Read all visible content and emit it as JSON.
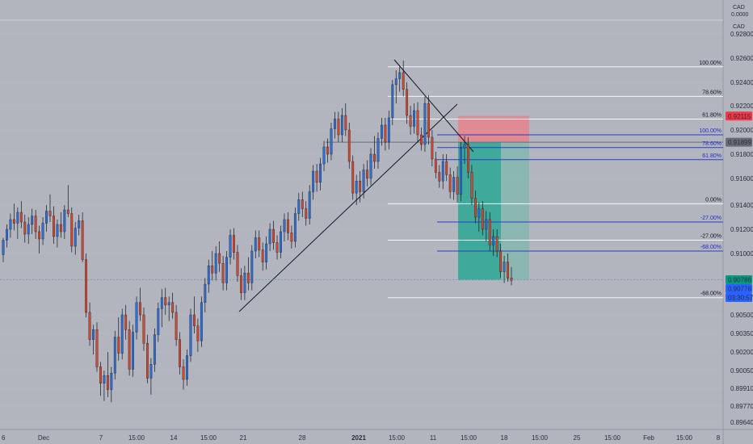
{
  "chart_data": {
    "type": "candlestick",
    "header": {
      "currency": "CAD",
      "currency2": "CAD",
      "price_partial": "0.0000"
    },
    "price_axis": {
      "range": [
        0.8955,
        0.9288
      ],
      "ticks": [
        {
          "value": 0.928,
          "label": "0.92800"
        },
        {
          "value": 0.926,
          "label": "0.92600"
        },
        {
          "value": 0.924,
          "label": "0.92400"
        },
        {
          "value": 0.922,
          "label": "0.92200"
        },
        {
          "value": 0.92,
          "label": "0.92000"
        },
        {
          "value": 0.918,
          "label": "0.91800"
        },
        {
          "value": 0.916,
          "label": "0.91600"
        },
        {
          "value": 0.914,
          "label": "0.91400"
        },
        {
          "value": 0.912,
          "label": "0.91200"
        },
        {
          "value": 0.91,
          "label": "0.91000"
        },
        {
          "value": 0.905,
          "label": "0.90500"
        },
        {
          "value": 0.9035,
          "label": "0.90350"
        },
        {
          "value": 0.902,
          "label": "0.90200"
        },
        {
          "value": 0.9005,
          "label": "0.90050"
        },
        {
          "value": 0.8991,
          "label": "0.89910"
        },
        {
          "value": 0.8977,
          "label": "0.89770"
        },
        {
          "value": 0.8964,
          "label": "0.89640"
        }
      ]
    },
    "time_axis": {
      "labels": [
        "6",
        "Dec",
        "7",
        "15:00",
        "14",
        "15:00",
        "21",
        "28",
        "2021",
        "15:00",
        "11",
        "15:00",
        "18",
        "15:00",
        "25",
        "15:00",
        "Feb",
        "15:00",
        "8"
      ]
    },
    "price_badges": [
      {
        "label": "0.92115",
        "value": 0.92115,
        "color": "#f23645"
      },
      {
        "label": "0.91899",
        "value": 0.91899,
        "color": "#6a6d78"
      },
      {
        "label": "0.90786",
        "value": 0.90786,
        "color": "#089981"
      },
      {
        "label": "0.90776",
        "value": 0.90776,
        "color": "#2962ff"
      },
      {
        "label": "03:30:57",
        "value": 0.907,
        "color": "#2962ff"
      }
    ],
    "fib_black": [
      {
        "label": "100.00%",
        "value": 0.92528
      },
      {
        "label": "78.60%",
        "value": 0.9228
      },
      {
        "label": "61.80%",
        "value": 0.9209
      },
      {
        "label": "0.00%",
        "value": 0.9141
      },
      {
        "label": "-27.00%",
        "value": 0.9111
      },
      {
        "label": "-68.00%",
        "value": 0.9064
      }
    ],
    "fib_blue": [
      {
        "label": "100.00%",
        "value": 0.9196
      },
      {
        "label": "78.60%",
        "value": 0.91855
      },
      {
        "label": "61.80%",
        "value": 0.91755
      },
      {
        "label": "-27.00%",
        "value": 0.9126
      },
      {
        "label": "-68.00%",
        "value": 0.9102
      }
    ],
    "short_position": {
      "entry": 0.91899,
      "stop": 0.92115,
      "target": 0.90786
    },
    "current_price": 0.90786,
    "candles": [
      [
        0.9099,
        0.9113,
        0.9093,
        0.9111
      ],
      [
        0.9111,
        0.9124,
        0.9105,
        0.912
      ],
      [
        0.912,
        0.9133,
        0.9113,
        0.9128
      ],
      [
        0.9128,
        0.9141,
        0.9119,
        0.9125
      ],
      [
        0.9125,
        0.9138,
        0.9112,
        0.9134
      ],
      [
        0.9134,
        0.9143,
        0.9121,
        0.9126
      ],
      [
        0.9126,
        0.9132,
        0.9109,
        0.9116
      ],
      [
        0.9116,
        0.913,
        0.9108,
        0.9124
      ],
      [
        0.9124,
        0.9137,
        0.9116,
        0.9131
      ],
      [
        0.9131,
        0.9136,
        0.9112,
        0.9118
      ],
      [
        0.9118,
        0.9123,
        0.91,
        0.9112
      ],
      [
        0.9112,
        0.913,
        0.9107,
        0.9125
      ],
      [
        0.9125,
        0.914,
        0.9118,
        0.9135
      ],
      [
        0.9135,
        0.9148,
        0.9126,
        0.9131
      ],
      [
        0.9131,
        0.9139,
        0.9108,
        0.9114
      ],
      [
        0.9114,
        0.9128,
        0.9105,
        0.9124
      ],
      [
        0.9124,
        0.9134,
        0.9113,
        0.9118
      ],
      [
        0.9118,
        0.914,
        0.9112,
        0.9136
      ],
      [
        0.9136,
        0.9155,
        0.913,
        0.9133
      ],
      [
        0.9133,
        0.9138,
        0.9101,
        0.9106
      ],
      [
        0.9106,
        0.9126,
        0.9099,
        0.9121
      ],
      [
        0.9121,
        0.9132,
        0.9115,
        0.9127
      ],
      [
        0.9127,
        0.9134,
        0.9093,
        0.9095
      ],
      [
        0.9095,
        0.91,
        0.9048,
        0.9052
      ],
      [
        0.9052,
        0.906,
        0.9025,
        0.903
      ],
      [
        0.903,
        0.9042,
        0.9018,
        0.9038
      ],
      [
        0.9038,
        0.9044,
        0.9004,
        0.9008
      ],
      [
        0.9008,
        0.9012,
        0.8985,
        0.8995
      ],
      [
        0.8995,
        0.9005,
        0.8981,
        0.9001
      ],
      [
        0.9001,
        0.902,
        0.8984,
        0.899
      ],
      [
        0.899,
        0.9008,
        0.898,
        0.9003
      ],
      [
        0.9003,
        0.9037,
        0.8998,
        0.9032
      ],
      [
        0.9032,
        0.9048,
        0.9013,
        0.9019
      ],
      [
        0.9019,
        0.9055,
        0.9014,
        0.905
      ],
      [
        0.905,
        0.9058,
        0.903,
        0.9038
      ],
      [
        0.9038,
        0.9045,
        0.9001,
        0.9006
      ],
      [
        0.9006,
        0.9042,
        0.9,
        0.9036
      ],
      [
        0.9036,
        0.9065,
        0.903,
        0.906
      ],
      [
        0.906,
        0.9072,
        0.9045,
        0.905
      ],
      [
        0.905,
        0.9056,
        0.9021,
        0.9027
      ],
      [
        0.9027,
        0.9034,
        0.8995,
        0.8999
      ],
      [
        0.8999,
        0.9015,
        0.8986,
        0.901
      ],
      [
        0.901,
        0.9039,
        0.9004,
        0.9034
      ],
      [
        0.9034,
        0.906,
        0.9028,
        0.9055
      ],
      [
        0.9055,
        0.9071,
        0.904,
        0.9064
      ],
      [
        0.9064,
        0.9072,
        0.905,
        0.9058
      ],
      [
        0.9058,
        0.9065,
        0.9045,
        0.906
      ],
      [
        0.906,
        0.9068,
        0.9047,
        0.9052
      ],
      [
        0.9052,
        0.9058,
        0.9025,
        0.903
      ],
      [
        0.903,
        0.9036,
        0.9002,
        0.9008
      ],
      [
        0.9008,
        0.9014,
        0.899,
        0.8998
      ],
      [
        0.8998,
        0.9022,
        0.8993,
        0.9017
      ],
      [
        0.9017,
        0.9055,
        0.9012,
        0.905
      ],
      [
        0.905,
        0.9065,
        0.9035,
        0.9041
      ],
      [
        0.9041,
        0.9047,
        0.902,
        0.9029
      ],
      [
        0.9029,
        0.9065,
        0.9024,
        0.906
      ],
      [
        0.906,
        0.908,
        0.9052,
        0.9075
      ],
      [
        0.9075,
        0.9095,
        0.9068,
        0.909
      ],
      [
        0.909,
        0.9102,
        0.9078,
        0.9084
      ],
      [
        0.9084,
        0.9106,
        0.9078,
        0.91
      ],
      [
        0.91,
        0.911,
        0.9085,
        0.9092
      ],
      [
        0.9092,
        0.9098,
        0.907,
        0.9076
      ],
      [
        0.9076,
        0.9102,
        0.907,
        0.9097
      ],
      [
        0.9097,
        0.912,
        0.9091,
        0.9115
      ],
      [
        0.9115,
        0.9121,
        0.9095,
        0.9101
      ],
      [
        0.9101,
        0.9107,
        0.9077,
        0.9082
      ],
      [
        0.9082,
        0.9088,
        0.9062,
        0.9068
      ],
      [
        0.9068,
        0.909,
        0.9062,
        0.9084
      ],
      [
        0.9084,
        0.9097,
        0.907,
        0.9076
      ],
      [
        0.9076,
        0.9107,
        0.907,
        0.9102
      ],
      [
        0.9102,
        0.9119,
        0.9096,
        0.9113
      ],
      [
        0.9113,
        0.9119,
        0.9097,
        0.9103
      ],
      [
        0.9103,
        0.9109,
        0.9086,
        0.9093
      ],
      [
        0.9093,
        0.9114,
        0.9087,
        0.9108
      ],
      [
        0.9108,
        0.9125,
        0.9102,
        0.912
      ],
      [
        0.912,
        0.9127,
        0.9103,
        0.9109
      ],
      [
        0.9109,
        0.9115,
        0.9095,
        0.9101
      ],
      [
        0.9101,
        0.9123,
        0.9096,
        0.9118
      ],
      [
        0.9118,
        0.9133,
        0.911,
        0.9128
      ],
      [
        0.9128,
        0.9134,
        0.9111,
        0.9117
      ],
      [
        0.9117,
        0.9123,
        0.9104,
        0.911
      ],
      [
        0.911,
        0.9138,
        0.9105,
        0.9133
      ],
      [
        0.9133,
        0.9149,
        0.9127,
        0.9144
      ],
      [
        0.9144,
        0.915,
        0.913,
        0.9137
      ],
      [
        0.9137,
        0.9143,
        0.9123,
        0.9129
      ],
      [
        0.9129,
        0.9155,
        0.9124,
        0.915
      ],
      [
        0.915,
        0.9171,
        0.9144,
        0.9166
      ],
      [
        0.9166,
        0.9172,
        0.915,
        0.9157
      ],
      [
        0.9157,
        0.9177,
        0.9151,
        0.9172
      ],
      [
        0.9172,
        0.9191,
        0.9166,
        0.9186
      ],
      [
        0.9186,
        0.9193,
        0.9173,
        0.918
      ],
      [
        0.918,
        0.9206,
        0.9175,
        0.9201
      ],
      [
        0.9201,
        0.9215,
        0.9193,
        0.9209
      ],
      [
        0.9209,
        0.9215,
        0.919,
        0.9196
      ],
      [
        0.9196,
        0.9218,
        0.919,
        0.9212
      ],
      [
        0.9212,
        0.9222,
        0.9195,
        0.92
      ],
      [
        0.92,
        0.9206,
        0.9168,
        0.9174
      ],
      [
        0.9174,
        0.9179,
        0.9144,
        0.9149
      ],
      [
        0.9149,
        0.9163,
        0.914,
        0.9158
      ],
      [
        0.9158,
        0.9166,
        0.9142,
        0.915
      ],
      [
        0.915,
        0.9172,
        0.9145,
        0.9167
      ],
      [
        0.9167,
        0.9175,
        0.9154,
        0.916
      ],
      [
        0.916,
        0.9185,
        0.9155,
        0.918
      ],
      [
        0.918,
        0.9195,
        0.9168,
        0.9174
      ],
      [
        0.9174,
        0.9198,
        0.9168,
        0.9193
      ],
      [
        0.9193,
        0.921,
        0.9187,
        0.9204
      ],
      [
        0.9204,
        0.921,
        0.9183,
        0.919
      ],
      [
        0.919,
        0.9216,
        0.9184,
        0.921
      ],
      [
        0.921,
        0.9242,
        0.9204,
        0.9238
      ],
      [
        0.9238,
        0.925,
        0.9222,
        0.9243
      ],
      [
        0.9243,
        0.9253,
        0.9232,
        0.9248
      ],
      [
        0.9248,
        0.9258,
        0.9228,
        0.9234
      ],
      [
        0.9234,
        0.924,
        0.9205,
        0.9212
      ],
      [
        0.9212,
        0.922,
        0.9196,
        0.9203
      ],
      [
        0.9203,
        0.9222,
        0.9197,
        0.9216
      ],
      [
        0.9216,
        0.9223,
        0.919,
        0.9196
      ],
      [
        0.9196,
        0.9202,
        0.9183,
        0.9188
      ],
      [
        0.9188,
        0.9228,
        0.9182,
        0.9222
      ],
      [
        0.9222,
        0.9229,
        0.9188,
        0.9194
      ],
      [
        0.9194,
        0.92,
        0.917,
        0.9176
      ],
      [
        0.9176,
        0.9182,
        0.916,
        0.9165
      ],
      [
        0.9165,
        0.9171,
        0.9153,
        0.9158
      ],
      [
        0.9158,
        0.918,
        0.9152,
        0.9174
      ],
      [
        0.9174,
        0.918,
        0.9158,
        0.9163
      ],
      [
        0.9163,
        0.9169,
        0.9145,
        0.915
      ],
      [
        0.915,
        0.9166,
        0.9144,
        0.9161
      ],
      [
        0.9161,
        0.917,
        0.9142,
        0.9148
      ],
      [
        0.9148,
        0.919,
        0.9143,
        0.9185
      ],
      [
        0.9185,
        0.9195,
        0.9172,
        0.9188
      ],
      [
        0.9188,
        0.9194,
        0.916,
        0.9165
      ],
      [
        0.9165,
        0.9171,
        0.914,
        0.9145
      ],
      [
        0.9145,
        0.9151,
        0.9125,
        0.913
      ],
      [
        0.913,
        0.9142,
        0.9118,
        0.9137
      ],
      [
        0.9137,
        0.9143,
        0.9115,
        0.912
      ],
      [
        0.912,
        0.9135,
        0.911,
        0.9128
      ],
      [
        0.9128,
        0.9134,
        0.9102,
        0.9107
      ],
      [
        0.9107,
        0.912,
        0.9098,
        0.9114
      ],
      [
        0.9114,
        0.912,
        0.9097,
        0.9102
      ],
      [
        0.9102,
        0.9108,
        0.908,
        0.9085
      ],
      [
        0.9085,
        0.9098,
        0.9076,
        0.9093
      ],
      [
        0.9093,
        0.91,
        0.9077,
        0.908
      ],
      [
        0.908,
        0.9089,
        0.9074,
        0.9078
      ]
    ]
  }
}
